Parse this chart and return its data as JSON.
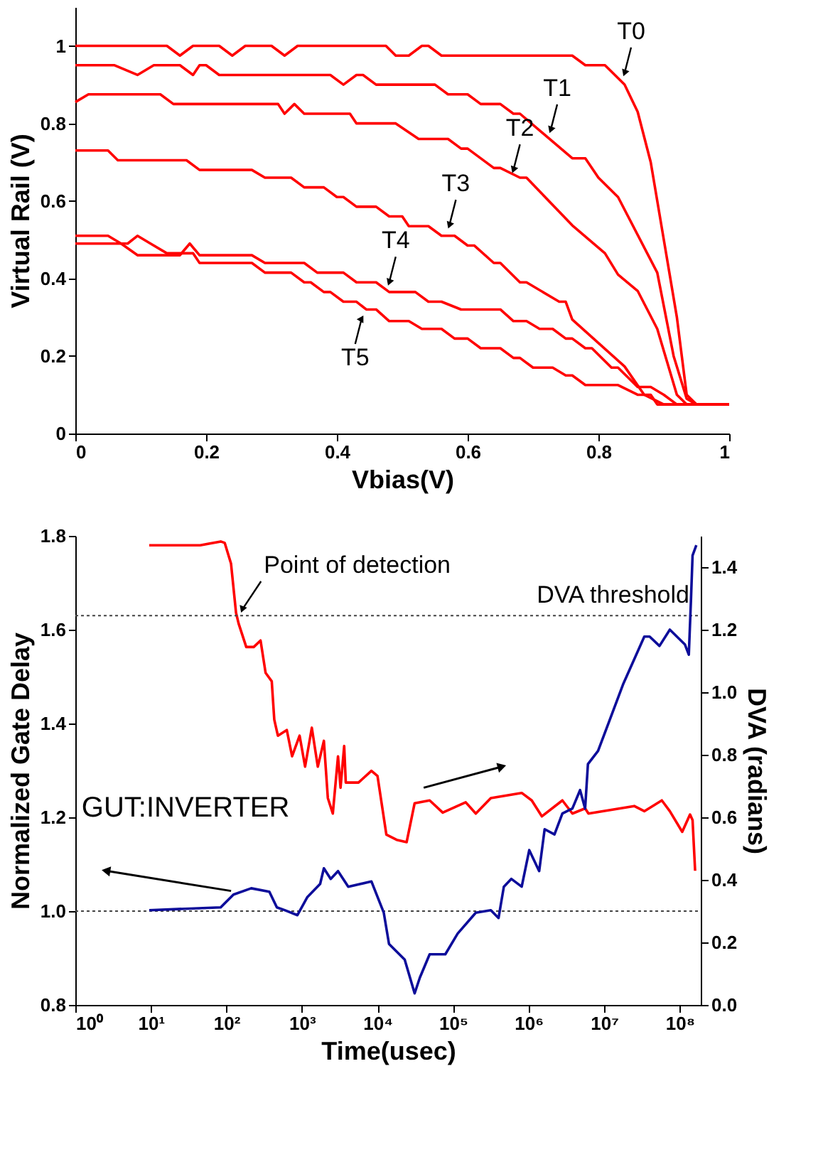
{
  "chart_data": [
    {
      "type": "line",
      "xlabel": "Vbias(V)",
      "ylabel": "Virtual Rail (V)",
      "xlim": [
        0,
        1
      ],
      "ylim": [
        0,
        1.1
      ],
      "xticks": [
        0,
        0.2,
        0.4,
        0.6,
        0.8,
        1
      ],
      "yticks": [
        0,
        0.2,
        0.4,
        0.6,
        0.8,
        1
      ],
      "grid": false,
      "marker": "none",
      "line_style": "solid",
      "series": [
        {
          "color": "#ff0000",
          "x": [
            0,
            0.14,
            0.16,
            0.18,
            0.22,
            0.24,
            0.26,
            0.3,
            0.32,
            0.34,
            0.475,
            0.49,
            0.51,
            0.53,
            0.54,
            0.56,
            0.76,
            0.78,
            0.81,
            0.84,
            0.86,
            0.88,
            0.9,
            0.92,
            0.935,
            0.95,
            1
          ],
          "values": [
            1,
            1,
            0.975,
            1,
            1,
            0.975,
            1,
            1,
            0.975,
            1,
            1,
            0.975,
            0.975,
            1,
            1,
            0.975,
            0.975,
            0.95,
            0.95,
            0.9,
            0.83,
            0.7,
            0.5,
            0.3,
            0.1,
            0.075,
            0.075
          ]
        },
        {
          "color": "#ff0000",
          "x": [
            0,
            0.06,
            0.095,
            0.12,
            0.16,
            0.18,
            0.19,
            0.2,
            0.22,
            0.39,
            0.41,
            0.43,
            0.44,
            0.46,
            0.55,
            0.57,
            0.6,
            0.62,
            0.65,
            0.67,
            0.68,
            0.76,
            0.78,
            0.8,
            0.83,
            0.89,
            0.915,
            0.935,
            0.95,
            1
          ],
          "values": [
            0.95,
            0.95,
            0.925,
            0.95,
            0.95,
            0.925,
            0.95,
            0.95,
            0.925,
            0.925,
            0.9,
            0.925,
            0.925,
            0.9,
            0.9,
            0.875,
            0.875,
            0.85,
            0.85,
            0.825,
            0.825,
            0.71,
            0.71,
            0.66,
            0.61,
            0.415,
            0.2,
            0.09,
            0.075,
            0.075
          ]
        },
        {
          "color": "#ff0000",
          "x": [
            0,
            0.02,
            0.13,
            0.15,
            0.31,
            0.32,
            0.335,
            0.35,
            0.42,
            0.43,
            0.49,
            0.525,
            0.57,
            0.59,
            0.6,
            0.64,
            0.65,
            0.68,
            0.69,
            0.76,
            0.81,
            0.83,
            0.86,
            0.89,
            0.92,
            0.935,
            1
          ],
          "values": [
            0.855,
            0.875,
            0.875,
            0.85,
            0.85,
            0.825,
            0.85,
            0.825,
            0.825,
            0.8,
            0.8,
            0.76,
            0.76,
            0.735,
            0.735,
            0.685,
            0.685,
            0.66,
            0.66,
            0.537,
            0.465,
            0.41,
            0.368,
            0.27,
            0.1,
            0.075,
            0.075
          ]
        },
        {
          "color": "#ff0000",
          "x": [
            0,
            0.05,
            0.065,
            0.17,
            0.19,
            0.27,
            0.29,
            0.33,
            0.35,
            0.38,
            0.4,
            0.41,
            0.43,
            0.46,
            0.48,
            0.5,
            0.51,
            0.54,
            0.56,
            0.58,
            0.6,
            0.61,
            0.64,
            0.65,
            0.68,
            0.69,
            0.74,
            0.75,
            0.76,
            0.84,
            0.87,
            0.9,
            1
          ],
          "values": [
            0.73,
            0.73,
            0.705,
            0.705,
            0.68,
            0.68,
            0.66,
            0.66,
            0.635,
            0.635,
            0.61,
            0.61,
            0.585,
            0.585,
            0.56,
            0.56,
            0.535,
            0.535,
            0.51,
            0.51,
            0.485,
            0.485,
            0.44,
            0.44,
            0.39,
            0.39,
            0.34,
            0.34,
            0.294,
            0.173,
            0.1,
            0.075,
            0.075
          ]
        },
        {
          "color": "#ff0000",
          "x": [
            0,
            0.05,
            0.07,
            0.095,
            0.16,
            0.175,
            0.19,
            0.27,
            0.29,
            0.35,
            0.37,
            0.41,
            0.43,
            0.46,
            0.48,
            0.52,
            0.54,
            0.56,
            0.59,
            0.65,
            0.67,
            0.69,
            0.71,
            0.73,
            0.75,
            0.76,
            0.78,
            0.79,
            0.82,
            0.83,
            0.86,
            0.88,
            0.9,
            0.92,
            1
          ],
          "values": [
            0.51,
            0.51,
            0.49,
            0.46,
            0.46,
            0.49,
            0.46,
            0.46,
            0.44,
            0.44,
            0.415,
            0.415,
            0.39,
            0.39,
            0.365,
            0.365,
            0.34,
            0.34,
            0.32,
            0.32,
            0.29,
            0.29,
            0.27,
            0.27,
            0.245,
            0.245,
            0.22,
            0.22,
            0.17,
            0.17,
            0.12,
            0.12,
            0.1,
            0.075,
            0.075
          ]
        },
        {
          "color": "#ff0000",
          "x": [
            0,
            0.08,
            0.095,
            0.115,
            0.14,
            0.18,
            0.19,
            0.27,
            0.29,
            0.33,
            0.35,
            0.36,
            0.38,
            0.39,
            0.41,
            0.43,
            0.445,
            0.46,
            0.48,
            0.51,
            0.53,
            0.56,
            0.58,
            0.6,
            0.62,
            0.65,
            0.67,
            0.68,
            0.7,
            0.73,
            0.75,
            0.76,
            0.78,
            0.83,
            0.86,
            0.88,
            0.89,
            1
          ],
          "values": [
            0.49,
            0.49,
            0.51,
            0.49,
            0.465,
            0.465,
            0.44,
            0.44,
            0.415,
            0.415,
            0.39,
            0.39,
            0.365,
            0.365,
            0.34,
            0.34,
            0.32,
            0.32,
            0.29,
            0.29,
            0.27,
            0.27,
            0.245,
            0.245,
            0.22,
            0.22,
            0.195,
            0.195,
            0.17,
            0.17,
            0.15,
            0.15,
            0.125,
            0.125,
            0.1,
            0.1,
            0.075,
            0.075
          ]
        }
      ],
      "annotations": [
        {
          "text": "T0",
          "x": 0.84,
          "y": 0.93
        },
        {
          "text": "T1",
          "x": 0.727,
          "y": 0.783
        },
        {
          "text": "T2",
          "x": 0.67,
          "y": 0.68
        },
        {
          "text": "T3",
          "x": 0.572,
          "y": 0.537
        },
        {
          "text": "T4",
          "x": 0.48,
          "y": 0.39
        },
        {
          "text": "T5",
          "x": 0.438,
          "y": 0.297
        }
      ]
    },
    {
      "type": "line",
      "xlabel": "Time(usec)",
      "ylabel": "Normalized Gate Delay",
      "y2label": "DVA (radians)",
      "log": "x",
      "xlim": [
        1,
        190000000
      ],
      "ylim": [
        0.8,
        1.8
      ],
      "y2lim": [
        0,
        1.5
      ],
      "xticks": [
        {
          "value": 1,
          "label": "10⁰"
        },
        {
          "value": 10,
          "label": "10¹"
        },
        {
          "value": 100,
          "label": "10²"
        },
        {
          "value": 1000,
          "label": "10³"
        },
        {
          "value": 10000,
          "label": "10⁴"
        },
        {
          "value": 100000,
          "label": "10⁵"
        },
        {
          "value": 1000000,
          "label": "10⁶"
        },
        {
          "value": 10000000,
          "label": "10⁷"
        },
        {
          "value": 100000000,
          "label": "10⁸"
        }
      ],
      "yticks": [
        0.8,
        {
          "value": 1,
          "label": "1.0"
        },
        1.2,
        1.4,
        1.6,
        1.8
      ],
      "y2ticks": [
        {
          "value": 0,
          "label": "0.0"
        },
        0.2,
        0.4,
        0.6,
        0.8,
        {
          "value": 1,
          "label": "1.0"
        },
        1.2,
        1.4
      ],
      "grid": false,
      "marker": "none",
      "line_style": "solid",
      "series": [
        {
          "color": "#ff0000",
          "x": [
            9.5,
            45,
            84,
            95,
            115,
            134,
            145,
            183,
            230,
            283,
            330,
            398,
            430,
            480,
            630,
            740,
            930,
            1100,
            1350,
            1620,
            1950,
            2200,
            2560,
            3000,
            3240,
            3620,
            3800,
            5600,
            8300,
            10000,
            13100,
            17900,
            24300,
            31000,
            49000,
            73000,
            147000,
            200000,
            316000,
            810000,
            1100000,
            1500000,
            2800000,
            3800000,
            5600000,
            6200000,
            25000000,
            34000000,
            58000000,
            74000000,
            108000000,
            137000000,
            148000000,
            160000000
          ],
          "values": [
            1.78,
            1.78,
            1.788,
            1.785,
            1.741,
            1.636,
            1.613,
            1.563,
            1.563,
            1.577,
            1.508,
            1.49,
            1.408,
            1.374,
            1.386,
            1.33,
            1.374,
            1.308,
            1.391,
            1.308,
            1.363,
            1.241,
            1.208,
            1.33,
            1.263,
            1.352,
            1.274,
            1.274,
            1.299,
            1.288,
            1.163,
            1.152,
            1.147,
            1.23,
            1.236,
            1.21,
            1.232,
            1.208,
            1.241,
            1.252,
            1.236,
            1.202,
            1.236,
            1.208,
            1.219,
            1.208,
            1.224,
            1.213,
            1.236,
            1.213,
            1.169,
            1.206,
            1.194,
            1.086
          ]
        },
        {
          "color": "#0d0d9a",
          "axis": "y2",
          "x": [
            9.5,
            84,
            124,
            213,
            370,
            465,
            590,
            870,
            1180,
            1740,
            1950,
            2400,
            3000,
            4100,
            8300,
            12100,
            14200,
            22900,
            31000,
            36300,
            49000,
            79000,
            115000,
            200000,
            316000,
            400000,
            470000,
            590000,
            810000,
            1020000,
            1380000,
            1630000,
            2200000,
            2800000,
            3800000,
            4800000,
            5600000,
            6100000,
            8300000,
            18000000,
            34000000,
            40000000,
            54000000,
            74000000,
            117000000,
            132000000,
            141000000,
            148000000,
            166000000
          ],
          "values": [
            0.303,
            0.312,
            0.353,
            0.373,
            0.362,
            0.312,
            0.303,
            0.287,
            0.345,
            0.387,
            0.437,
            0.403,
            0.428,
            0.378,
            0.395,
            0.295,
            0.195,
            0.145,
            0.037,
            0.087,
            0.162,
            0.162,
            0.228,
            0.295,
            0.303,
            0.278,
            0.378,
            0.403,
            0.378,
            0.495,
            0.428,
            0.562,
            0.545,
            0.612,
            0.628,
            0.687,
            0.628,
            0.77,
            0.812,
            1.028,
            1.178,
            1.178,
            1.148,
            1.2,
            1.153,
            1.12,
            1.295,
            1.437,
            1.47
          ]
        }
      ],
      "ref_lines": [
        {
          "axis": "y",
          "value": 1.63,
          "label": "DVA threshold",
          "color": "#444444",
          "line_style": "dotted"
        },
        {
          "axis": "y",
          "value": 1.0,
          "color": "#444444",
          "line_style": "dotted"
        }
      ],
      "annotations": [
        {
          "text": "Point of detection",
          "x": 162,
          "y": 1.643
        },
        "GUT:INVERTER"
      ]
    }
  ]
}
